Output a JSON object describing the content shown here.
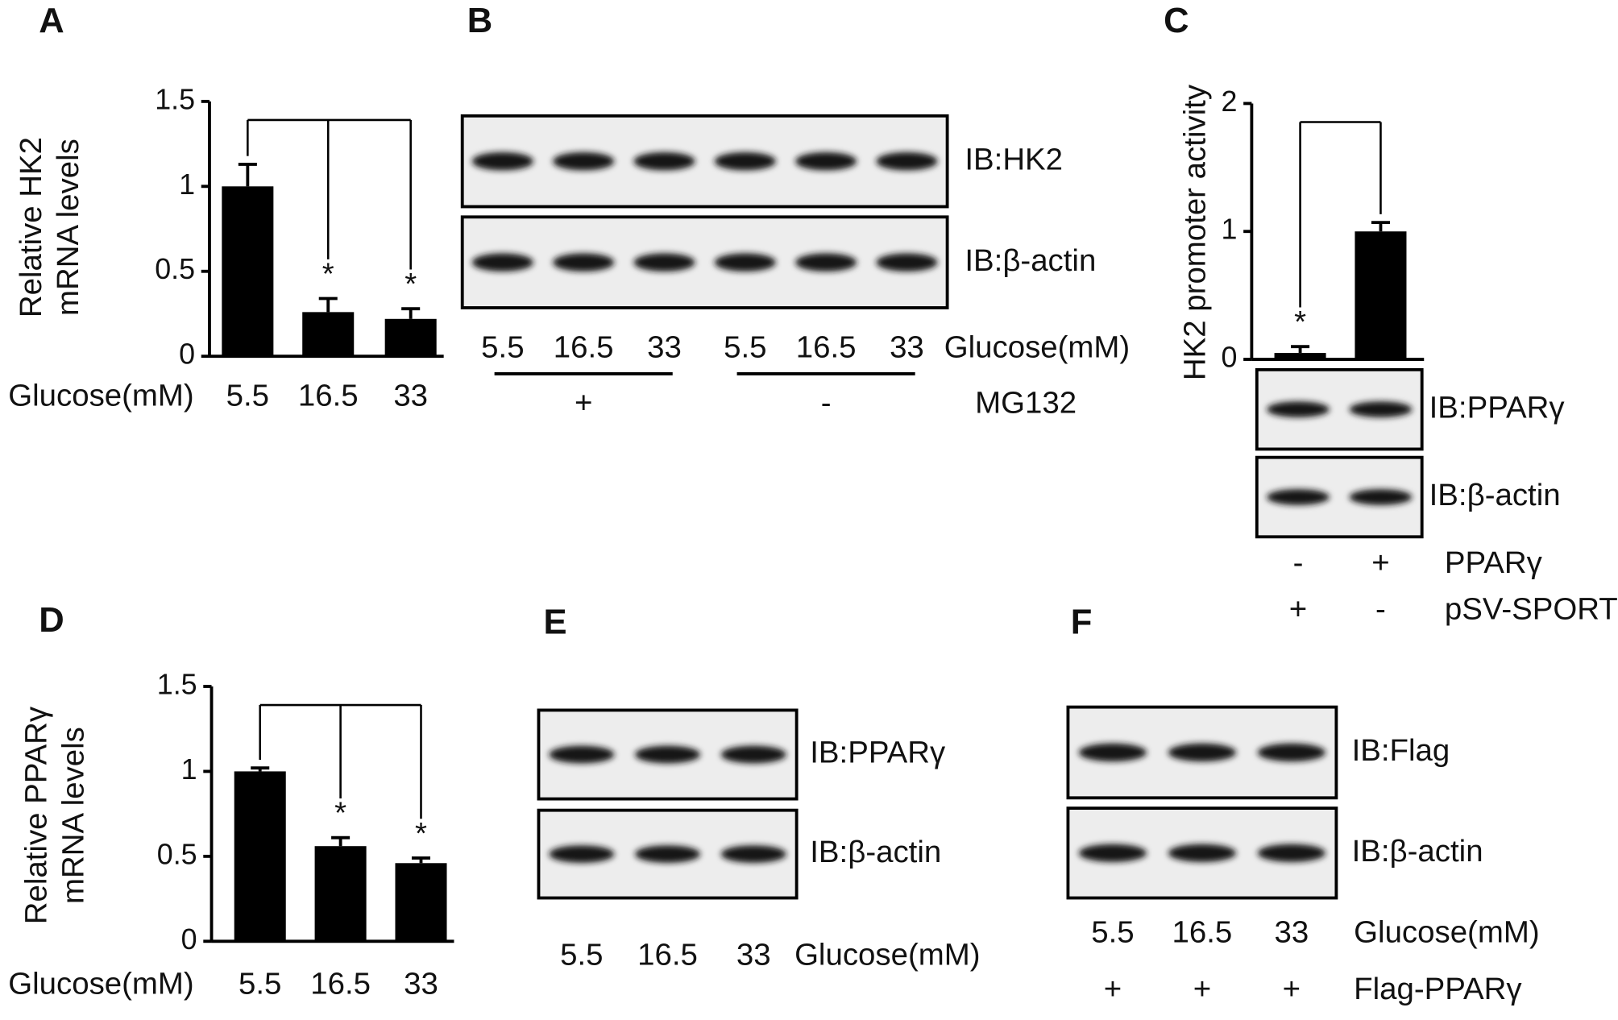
{
  "chart_data": [
    {
      "panel": "A",
      "type": "bar",
      "ylabel": [
        "Relative HK2",
        "mRNA levels"
      ],
      "xlabel": "Glucose(mM)",
      "categories": [
        "5.5",
        "16.5",
        "33"
      ],
      "values": [
        1.0,
        0.26,
        0.22
      ],
      "errors": [
        0.13,
        0.08,
        0.06
      ],
      "significance": [
        null,
        "*",
        "*"
      ],
      "color": "#000000",
      "ylim": [
        0,
        1.5
      ],
      "yticks": [
        0,
        0.5,
        1,
        1.5
      ]
    },
    {
      "panel": "B",
      "type": "blot",
      "blots": [
        "IB:HK2",
        "IB:β-actin"
      ],
      "rows": [
        {
          "label": "Glucose(mM)",
          "values": [
            "5.5",
            "16.5",
            "33",
            "5.5",
            "16.5",
            "33"
          ]
        },
        {
          "label": "MG132",
          "values": [
            "+",
            null,
            null,
            "-",
            null,
            null
          ]
        }
      ]
    },
    {
      "panel": "C",
      "type": "bar",
      "ylabel": [
        "HK2 promoter activity"
      ],
      "values": [
        0.05,
        1.0
      ],
      "errors": [
        0.05,
        0.07
      ],
      "significance": [
        "*",
        null
      ],
      "color": "#000000",
      "ylim": [
        0,
        2
      ],
      "yticks": [
        0,
        1,
        2
      ],
      "blots": [
        "IB:PPARγ",
        "IB:β-actin"
      ],
      "rows": [
        {
          "label": "PPARγ",
          "values": [
            "-",
            "+"
          ]
        },
        {
          "label": "pSV-SPORT",
          "values": [
            "+",
            "-"
          ]
        }
      ]
    },
    {
      "panel": "D",
      "type": "bar",
      "ylabel": [
        "Relative PPARγ",
        "mRNA levels"
      ],
      "xlabel": "Glucose(mM)",
      "categories": [
        "5.5",
        "16.5",
        "33"
      ],
      "values": [
        1.0,
        0.56,
        0.46
      ],
      "errors": [
        0.02,
        0.05,
        0.03
      ],
      "significance": [
        null,
        "*",
        "*"
      ],
      "color": "#000000",
      "ylim": [
        0,
        1.5
      ],
      "yticks": [
        0,
        0.5,
        1,
        1.5
      ]
    },
    {
      "panel": "E",
      "type": "blot",
      "blots": [
        "IB:PPARγ",
        "IB:β-actin"
      ],
      "rows": [
        {
          "label": "Glucose(mM)",
          "values": [
            "5.5",
            "16.5",
            "33"
          ]
        }
      ]
    },
    {
      "panel": "F",
      "type": "blot",
      "blots": [
        "IB:Flag",
        "IB:β-actin"
      ],
      "rows": [
        {
          "label": "Glucose(mM)",
          "values": [
            "5.5",
            "16.5",
            "33"
          ]
        },
        {
          "label": "Flag-PPARγ",
          "values": [
            "+",
            "+",
            "+"
          ]
        }
      ]
    }
  ]
}
